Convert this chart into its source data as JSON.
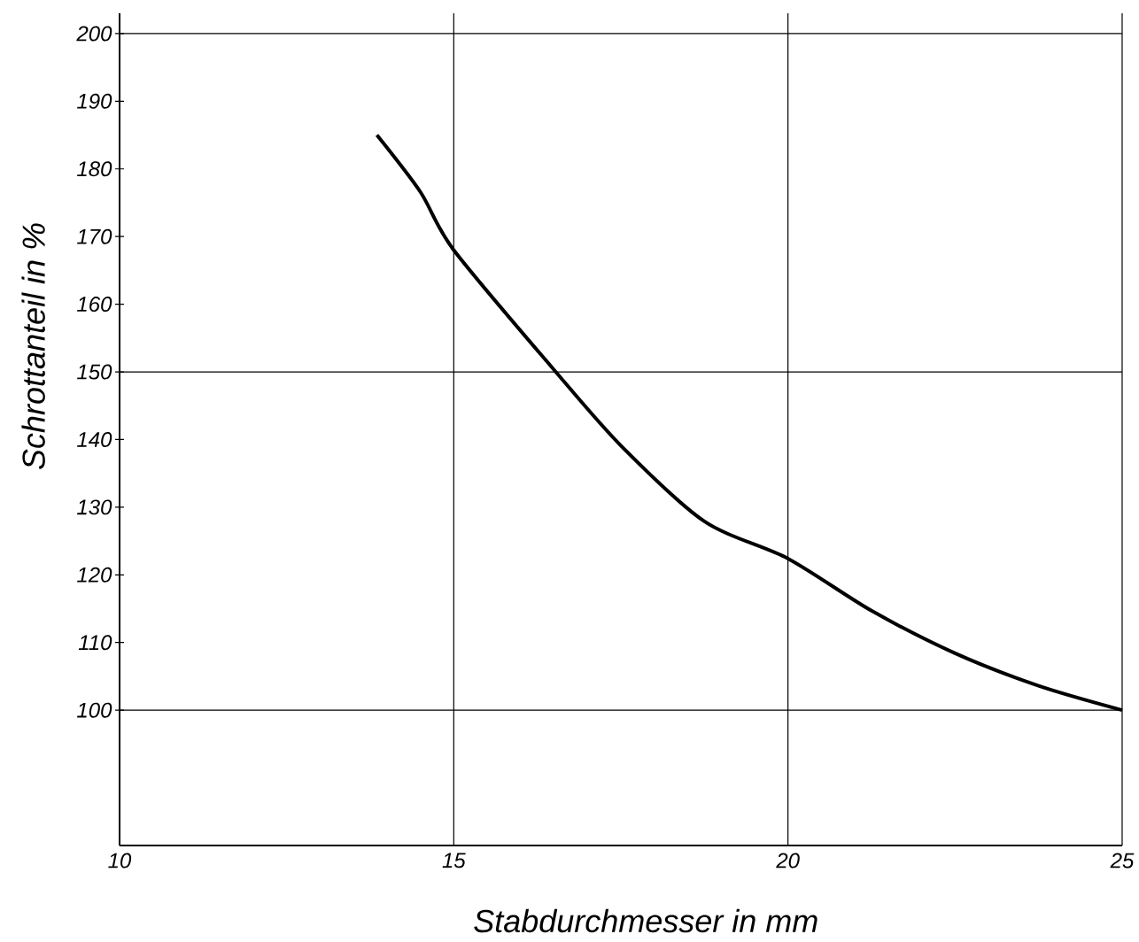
{
  "chart_data": {
    "type": "line",
    "xlabel": "Stabdurchmesser in mm",
    "ylabel": "Schrottanteil in %",
    "x": [
      13.85,
      14.5,
      15,
      16.5,
      17.5,
      18.75,
      20,
      21.25,
      22.5,
      23.75,
      25
    ],
    "values": [
      185,
      176.6,
      168,
      150.3,
      139.1,
      127.9,
      122.4,
      114.7,
      108.4,
      103.6,
      100
    ],
    "color": "#000000",
    "line_style": "solid",
    "marker": "none",
    "xlim": [
      10,
      25
    ],
    "ylim": [
      80,
      203
    ],
    "xticks": [
      10,
      15,
      20,
      25
    ],
    "yticks": [
      100,
      110,
      120,
      130,
      140,
      150,
      160,
      170,
      180,
      190,
      200
    ],
    "grid": "x",
    "ref_lines": [
      {
        "axis": "y",
        "value": 100
      },
      {
        "axis": "y",
        "value": 150
      },
      {
        "axis": "y",
        "value": 200
      }
    ]
  }
}
